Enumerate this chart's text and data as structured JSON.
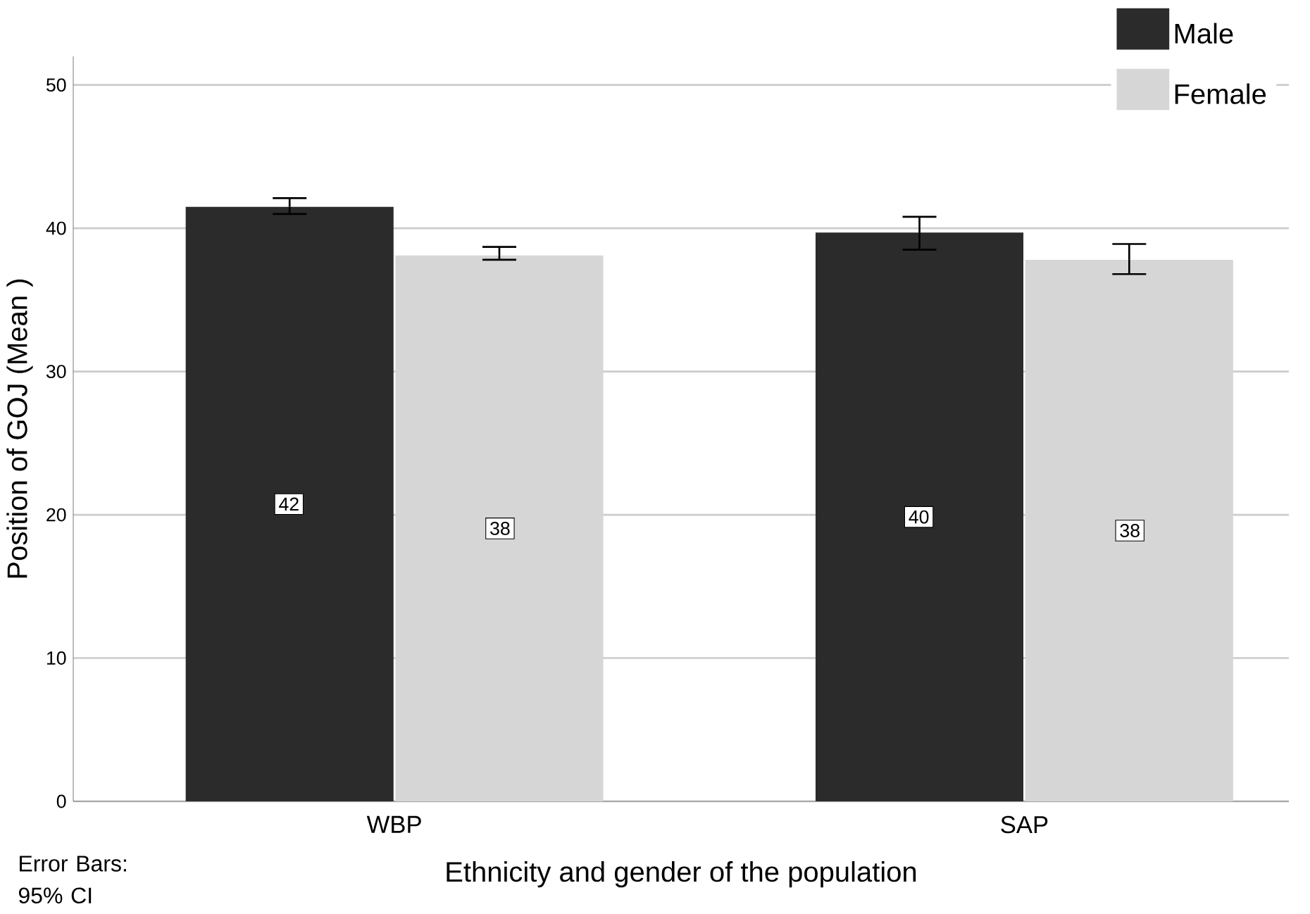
{
  "chart_data": {
    "type": "bar",
    "xlabel": "Ethnicity and gender of the population",
    "ylabel": "Position of GOJ  (Mean )",
    "categories": [
      "WBP",
      "SAP"
    ],
    "series": [
      {
        "name": "Male",
        "color": "#2b2b2b",
        "values": [
          41.5,
          39.7
        ],
        "errors": [
          [
            41.0,
            42.1
          ],
          [
            38.5,
            40.8
          ]
        ],
        "value_labels": [
          "42",
          "40"
        ]
      },
      {
        "name": "Female",
        "color": "#d6d6d6",
        "values": [
          38.1,
          37.8
        ],
        "errors": [
          [
            37.8,
            38.7
          ],
          [
            36.8,
            38.9
          ]
        ],
        "value_labels": [
          "38",
          "38"
        ]
      }
    ],
    "ylim": [
      0,
      52
    ],
    "yticks": [
      0,
      10,
      20,
      30,
      40,
      50
    ],
    "grid": "y",
    "legend": "top right",
    "annotations": [
      "Error Bars: 95% CI"
    ]
  }
}
